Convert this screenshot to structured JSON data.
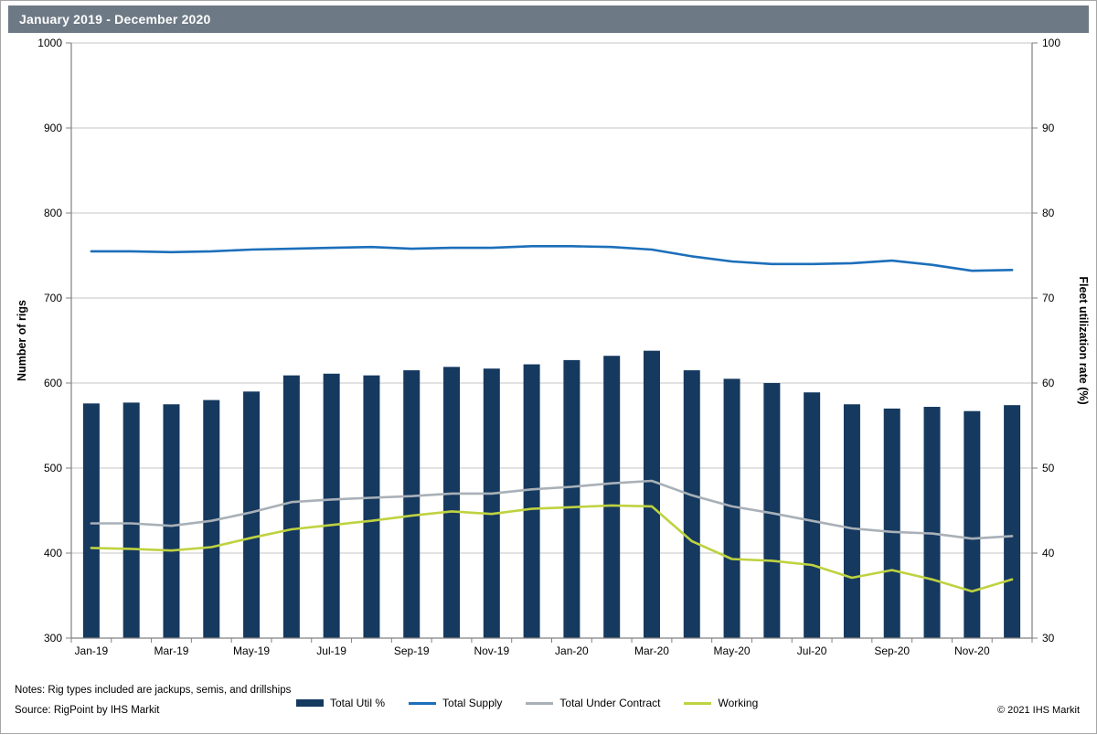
{
  "header": {
    "title": "January 2019 - December 2020"
  },
  "footer": {
    "notes": "Notes: Rig types included are jackups, semis, and drillships",
    "source": "Source: RigPoint by IHS Markit",
    "copyright": "© 2021 IHS Markit"
  },
  "colors": {
    "header_bg": "#6d7984",
    "bar": "#15395f",
    "supply_line": "#1c6fba",
    "under_contract_line": "#a9b0b7",
    "working_line": "#bfd240",
    "gridline": "#c6c6c6",
    "axis_line": "#808080"
  },
  "chart_data": {
    "type": "bar",
    "subtype": "combo bar+line, dual axis",
    "grid": true,
    "legend_position": "bottom",
    "categories": [
      "Jan-19",
      "Feb-19",
      "Mar-19",
      "Apr-19",
      "May-19",
      "Jun-19",
      "Jul-19",
      "Aug-19",
      "Sep-19",
      "Oct-19",
      "Nov-19",
      "Dec-19",
      "Jan-20",
      "Feb-20",
      "Mar-20",
      "Apr-20",
      "May-20",
      "Jun-20",
      "Jul-20",
      "Aug-20",
      "Sep-20",
      "Oct-20",
      "Nov-20",
      "Dec-20"
    ],
    "x_tick_labels": [
      "Jan-19",
      "Mar-19",
      "May-19",
      "Jul-19",
      "Sep-19",
      "Nov-19",
      "Jan-20",
      "Mar-20",
      "May-20",
      "Jul-20",
      "Sep-20",
      "Nov-20"
    ],
    "left_axis": {
      "label": "Number of rigs",
      "min": 300,
      "max": 1000,
      "step": 100
    },
    "right_axis": {
      "label": "Fleet utilization rate (%)",
      "min": 30,
      "max": 100,
      "step": 10
    },
    "series": [
      {
        "name": "Total Util %",
        "type": "bar",
        "axis": "right",
        "color": "#15395f",
        "values": [
          57.6,
          57.7,
          57.5,
          58.0,
          59.0,
          60.9,
          61.1,
          60.9,
          61.5,
          61.9,
          61.7,
          62.2,
          62.7,
          63.2,
          63.8,
          61.5,
          60.5,
          60.0,
          58.9,
          57.5,
          57.0,
          57.2,
          56.7,
          57.4
        ]
      },
      {
        "name": "Total Supply",
        "type": "line",
        "axis": "left",
        "color": "#1c6fba",
        "values": [
          755,
          755,
          754,
          755,
          757,
          758,
          759,
          760,
          758,
          759,
          759,
          761,
          761,
          760,
          757,
          749,
          743,
          740,
          740,
          741,
          744,
          739,
          732,
          733
        ]
      },
      {
        "name": "Total Under Contract",
        "type": "line",
        "axis": "left",
        "color": "#a9b0b7",
        "values": [
          435,
          435,
          432,
          438,
          448,
          460,
          463,
          465,
          467,
          470,
          470,
          475,
          478,
          482,
          485,
          468,
          455,
          447,
          438,
          429,
          425,
          423,
          417,
          420
        ]
      },
      {
        "name": "Working",
        "type": "line",
        "axis": "left",
        "color": "#bfd240",
        "values": [
          406,
          405,
          403,
          407,
          418,
          428,
          433,
          438,
          444,
          449,
          446,
          452,
          454,
          456,
          455,
          414,
          393,
          391,
          386,
          371,
          380,
          369,
          355,
          369
        ]
      }
    ]
  }
}
